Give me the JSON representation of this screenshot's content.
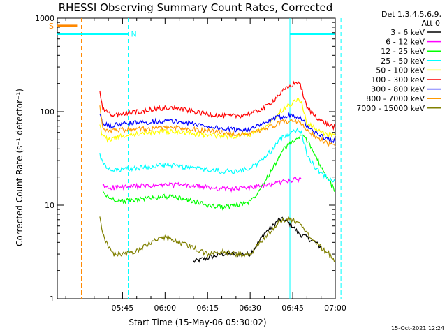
{
  "chart_data": {
    "type": "line",
    "title": "RHESSI Observing Summary Count Rates, Corrected",
    "ylabel": "Corrected Count Rate (s⁻¹ detector⁻¹)",
    "xlabel": "Start Time (15-May-06 05:30:02)",
    "y_scale": "log",
    "ylim": [
      1,
      1000
    ],
    "xlim_minutes": [
      -8,
      90
    ],
    "y_ticks": [
      {
        "value": 1,
        "label": "1"
      },
      {
        "value": 10,
        "label": "10"
      },
      {
        "value": 100,
        "label": "100"
      },
      {
        "value": 1000,
        "label": "1000"
      }
    ],
    "x_ticks": [
      {
        "value": 15,
        "label": "05:45"
      },
      {
        "value": 30,
        "label": "06:00"
      },
      {
        "value": 45,
        "label": "06:15"
      },
      {
        "value": 60,
        "label": "06:30"
      },
      {
        "value": 75,
        "label": "06:45"
      },
      {
        "value": 90,
        "label": "07:00"
      }
    ],
    "legend_header": [
      "Det 1,3,4,5,6,9,",
      "Att 0"
    ],
    "series": [
      {
        "name": "3 - 6 keV",
        "color": "#000000",
        "x": [
          40,
          50,
          60,
          63,
          65,
          68,
          70,
          72,
          75,
          77,
          80,
          83,
          85
        ],
        "y": [
          2.5,
          3,
          3,
          4,
          5,
          6,
          7,
          7,
          6,
          5,
          4.5,
          4,
          3.5
        ]
      },
      {
        "name": "6 - 12 keV",
        "color": "#ff00ff",
        "x": [
          8,
          10,
          15,
          20,
          25,
          30,
          35,
          40,
          45,
          50,
          55,
          60,
          65,
          68,
          70,
          72,
          75,
          77,
          78
        ],
        "y": [
          16,
          15.5,
          15.5,
          16,
          16,
          16.5,
          16.5,
          16,
          15.5,
          15,
          15,
          15.5,
          16,
          17,
          17.5,
          18,
          18.5,
          19,
          19
        ]
      },
      {
        "name": "12 - 25 keV",
        "color": "#00ff00",
        "x": [
          8,
          10,
          15,
          20,
          25,
          30,
          35,
          40,
          45,
          50,
          55,
          60,
          62,
          65,
          68,
          70,
          72,
          75,
          78,
          80,
          83,
          85,
          88,
          90
        ],
        "y": [
          14,
          12,
          11,
          11.5,
          12,
          12.5,
          12,
          11,
          10,
          9.5,
          10,
          11,
          13,
          18,
          25,
          32,
          40,
          48,
          55,
          50,
          35,
          25,
          18,
          14
        ]
      },
      {
        "name": "25 - 50 keV",
        "color": "#00ffff",
        "x": [
          7,
          8,
          10,
          12,
          15,
          20,
          25,
          30,
          35,
          40,
          45,
          50,
          55,
          60,
          62,
          65,
          68,
          70,
          72,
          75,
          77,
          78,
          80,
          83,
          85,
          88,
          90
        ],
        "y": [
          35,
          28,
          24,
          23.5,
          24,
          25,
          26,
          27,
          26,
          25,
          24,
          23,
          23,
          25,
          27,
          32,
          40,
          48,
          55,
          62,
          65,
          60,
          35,
          25,
          22,
          19,
          18
        ]
      },
      {
        "name": "50 - 100 keV",
        "color": "#ffff00",
        "x": [
          7,
          8,
          10,
          12,
          15,
          20,
          25,
          30,
          35,
          40,
          45,
          50,
          55,
          60,
          62,
          65,
          68,
          70,
          72,
          75,
          77,
          78,
          80,
          85,
          90
        ],
        "y": [
          70,
          55,
          50,
          52,
          55,
          58,
          60,
          62,
          60,
          58,
          56,
          55,
          55,
          58,
          62,
          70,
          82,
          95,
          110,
          125,
          140,
          125,
          75,
          60,
          55
        ]
      },
      {
        "name": "100 - 300 keV",
        "color": "#ff0000",
        "x": [
          7,
          8,
          10,
          12,
          15,
          20,
          25,
          30,
          35,
          40,
          45,
          50,
          55,
          60,
          62,
          65,
          68,
          70,
          72,
          75,
          77,
          78,
          80,
          83,
          85,
          88,
          90
        ],
        "y": [
          160,
          110,
          95,
          92,
          95,
          100,
          105,
          110,
          108,
          100,
          95,
          90,
          90,
          95,
          100,
          110,
          130,
          150,
          170,
          195,
          210,
          180,
          110,
          90,
          80,
          72,
          68
        ]
      },
      {
        "name": "300 - 800 keV",
        "color": "#0000ff",
        "x": [
          7,
          8,
          10,
          12,
          15,
          20,
          25,
          30,
          35,
          40,
          45,
          50,
          55,
          60,
          62,
          65,
          68,
          70,
          72,
          75,
          77,
          78,
          80,
          83,
          85,
          88,
          90
        ],
        "y": [
          90,
          75,
          70,
          72,
          74,
          76,
          78,
          80,
          78,
          74,
          70,
          66,
          64,
          65,
          68,
          75,
          82,
          88,
          90,
          92,
          90,
          85,
          70,
          60,
          55,
          50,
          48
        ]
      },
      {
        "name": "800 - 7000 keV",
        "color": "#ff9900",
        "x": [
          7,
          8,
          10,
          12,
          15,
          20,
          25,
          30,
          35,
          40,
          45,
          50,
          55,
          60,
          62,
          65,
          68,
          70,
          72,
          75,
          77,
          78,
          80,
          83,
          85,
          88,
          90
        ],
        "y": [
          110,
          68,
          62,
          63,
          64,
          65,
          66,
          68,
          67,
          65,
          63,
          60,
          58,
          58,
          60,
          65,
          70,
          75,
          78,
          80,
          78,
          75,
          62,
          55,
          50,
          45,
          42
        ]
      },
      {
        "name": "7000 - 15000 keV",
        "color": "#808000",
        "x": [
          7,
          8,
          10,
          12,
          15,
          20,
          25,
          30,
          35,
          40,
          45,
          50,
          55,
          60,
          62,
          65,
          68,
          70,
          72,
          75,
          77,
          78,
          80,
          83,
          85,
          88,
          90
        ],
        "y": [
          8,
          5,
          3.5,
          3,
          3,
          3.2,
          4,
          4.5,
          4,
          3.5,
          3,
          3.2,
          3,
          3,
          3.5,
          4.5,
          5.5,
          6.5,
          7,
          7,
          6.5,
          6,
          5,
          4,
          3.5,
          3,
          2.5
        ]
      }
    ],
    "flag_bars": [
      {
        "label": "S",
        "color": "#ff8800",
        "x_start": -8,
        "x_end": -1,
        "y": 830
      },
      {
        "label": "N",
        "color": "#00ffff",
        "x_start": -8,
        "x_end": 17,
        "y": 680
      },
      {
        "label": "",
        "color": "#00ffff",
        "x_start": 74,
        "x_end": 92,
        "y": 680
      }
    ],
    "vertical_markers": [
      {
        "color": "#ff8800",
        "x": 0.5,
        "style": "dashed"
      },
      {
        "color": "#00ffff",
        "x": 17,
        "style": "dashed"
      },
      {
        "color": "#00ffff",
        "x": 74,
        "style": "solid"
      },
      {
        "color": "#00ffff",
        "x": 92,
        "style": "dashed"
      }
    ],
    "timestamp": "15-Oct-2021 12:24"
  }
}
